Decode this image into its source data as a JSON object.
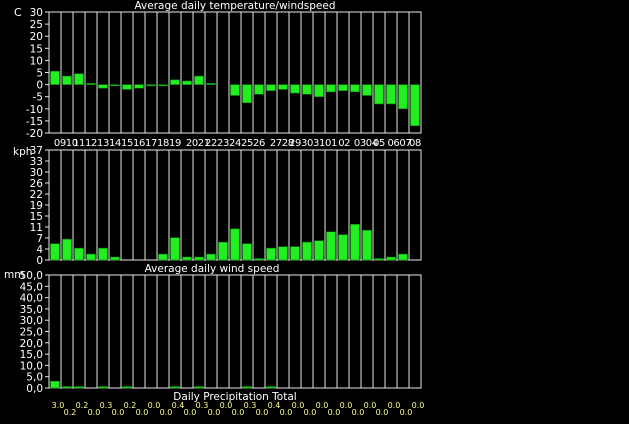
{
  "chart_data": [
    {
      "type": "bar",
      "title": "Average daily temperature/windspeed",
      "ylabel": "C",
      "ylim": [
        -20,
        30
      ],
      "yticks": [
        "30",
        "25",
        "20",
        "15",
        "10",
        "5",
        "0",
        "-5",
        "-10",
        "-15",
        "-20"
      ],
      "categories": [
        "09",
        "10",
        "11",
        "12",
        "13",
        "14",
        "15",
        "16",
        "17",
        "18",
        "19",
        "20",
        "21",
        "22",
        "23",
        "24",
        "25",
        "26",
        "27",
        "28",
        "29",
        "30",
        "31",
        "01",
        "02",
        "03",
        "04",
        "05",
        "06",
        "07",
        "08"
      ],
      "xtick_labels": [
        "0910",
        "11",
        "12",
        "13",
        "14",
        "15",
        "16",
        "17",
        "18",
        "19",
        "2021",
        "22",
        "23",
        "24",
        "25",
        "26",
        "2728",
        "29",
        "30",
        "31",
        "01",
        "02",
        "0304",
        "05",
        "0607",
        "08"
      ],
      "values": [
        5.5,
        3.5,
        4.5,
        0.5,
        -1.5,
        -0.5,
        -2,
        -1.5,
        -0.5,
        -0.5,
        2,
        1.5,
        3.5,
        0.5,
        0,
        -4.5,
        -7.5,
        -4,
        -2.5,
        -2,
        -3.5,
        -4,
        -5,
        -3,
        -2.5,
        -3,
        -4.5,
        -8,
        -8,
        -10,
        -17
      ],
      "grid": true,
      "color": "#22ee22"
    },
    {
      "type": "bar",
      "title": "Average daily wind speed",
      "ylabel": "kph",
      "ylim": [
        0,
        37
      ],
      "yticks": [
        "37",
        "33",
        "30",
        "26",
        "22",
        "19",
        "15",
        "11",
        "7",
        "4",
        "0"
      ],
      "categories": [
        "09",
        "10",
        "11",
        "12",
        "13",
        "14",
        "15",
        "16",
        "17",
        "18",
        "19",
        "20",
        "21",
        "22",
        "23",
        "24",
        "25",
        "26",
        "27",
        "28",
        "29",
        "30",
        "31",
        "01",
        "02",
        "03",
        "04",
        "05",
        "06",
        "07",
        "08"
      ],
      "values": [
        5.5,
        7,
        4,
        2,
        4,
        1,
        0,
        0,
        0,
        2,
        7.5,
        1,
        1,
        2,
        6,
        10.5,
        5.5,
        0.5,
        4,
        4.5,
        4.5,
        6,
        6.5,
        9.5,
        8.5,
        12,
        10,
        0.5,
        1,
        2,
        0
      ],
      "grid": true,
      "color": "#22ee22"
    },
    {
      "type": "bar",
      "title": "Daily Precipitation Total",
      "ylabel": "mm",
      "ylim": [
        0,
        50
      ],
      "yticks": [
        "50,0",
        "45,0",
        "40,0",
        "35,0",
        "30,0",
        "25,0",
        "20,0",
        "15,0",
        "10,0",
        "5,0",
        "0,0"
      ],
      "categories": [
        "09",
        "10",
        "11",
        "12",
        "13",
        "14",
        "15",
        "16",
        "17",
        "18",
        "19",
        "20",
        "21",
        "22",
        "23",
        "24",
        "25",
        "26",
        "27",
        "28",
        "29",
        "30",
        "31",
        "01",
        "02",
        "03",
        "04",
        "05",
        "06",
        "07",
        "08"
      ],
      "values": [
        3.0,
        0.2,
        0.2,
        0.0,
        0.3,
        0.0,
        0.2,
        0.0,
        0.0,
        0.0,
        0.4,
        0.0,
        0.3,
        0.0,
        0.0,
        0.0,
        0.3,
        0.0,
        0.4,
        0.0,
        0.0,
        0.0,
        0.0,
        0.0,
        0.0,
        0.0,
        0.0,
        0.0,
        0.0,
        0.0,
        0.0
      ],
      "value_labels": [
        "3.0",
        "0.2",
        "0.2",
        "0.0",
        "0.3",
        "0.0",
        "0.2",
        "0.0",
        "0.0",
        "0.0",
        "0.4",
        "0.0",
        "0.3",
        "0.0",
        "0.0",
        "0.0",
        "0.3",
        "0.0",
        "0.4",
        "0.0",
        "0.0",
        "0.0",
        "0.0",
        "0.0",
        "0.0",
        "0.0",
        "0.0",
        "0.0",
        "0.0",
        "0.0",
        "0.0"
      ],
      "grid": true,
      "color": "#22ee22",
      "label_color": "#ffff88"
    }
  ],
  "colors": {
    "background": "#000000",
    "grid": "#e8e8e8",
    "bar": "#22ee22",
    "bar_edge": "#0a7a0a",
    "text": "#ffffff",
    "value_text": "#ffff88"
  }
}
